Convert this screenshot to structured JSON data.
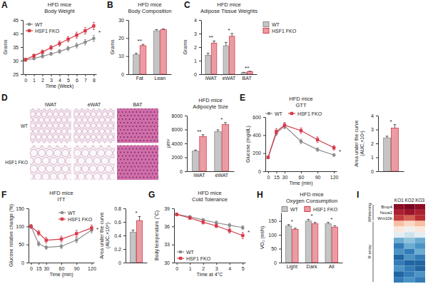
{
  "chart_data": [
    {
      "panel": "A",
      "type": "line",
      "subtitle": "HFD mice",
      "title": "Body Weight",
      "x_label": "Time (Week)",
      "y_label": "Grams",
      "x": [
        0,
        1,
        2,
        3,
        4,
        5,
        6,
        7,
        8
      ],
      "xlim": [
        -0.3,
        8.3
      ],
      "xticks": [
        0,
        1,
        2,
        3,
        4,
        5,
        6,
        7,
        8
      ],
      "ylim": [
        25,
        45
      ],
      "yticks": [
        25,
        30,
        35,
        40,
        45
      ],
      "legend": "top-left",
      "annotation": "*",
      "series": [
        {
          "name": "WT",
          "color": "#8c8c8c",
          "marker": "circle",
          "values": [
            30.2,
            30.8,
            31.6,
            32.5,
            33.4,
            34.5,
            35.6,
            36.8,
            38.2
          ],
          "errors": [
            0.5,
            0.5,
            0.6,
            0.6,
            0.7,
            0.8,
            0.9,
            1.0,
            1.1
          ]
        },
        {
          "name": "HSF1 FKO",
          "color": "#d63a4a",
          "marker": "square",
          "values": [
            30.4,
            31.8,
            33.2,
            34.8,
            36.3,
            37.9,
            39.4,
            41.0,
            42.8
          ],
          "errors": [
            0.5,
            0.6,
            0.7,
            0.8,
            0.9,
            1.0,
            1.1,
            1.2,
            1.3
          ]
        }
      ]
    },
    {
      "panel": "B",
      "type": "bar",
      "subtitle": "HFD mice",
      "title": "Body Composition",
      "y_label": "Grams",
      "categories": [
        "Fat",
        "Lean"
      ],
      "ylim": [
        0,
        30
      ],
      "yticks": [
        0,
        10,
        20,
        30
      ],
      "annotations": [
        "**",
        null
      ],
      "series": [
        {
          "color": "#8c8c8c",
          "values": [
            10.8,
            24.0
          ],
          "errors": [
            0.8,
            0.7
          ]
        },
        {
          "color": "#d63a4a",
          "values": [
            15.8,
            24.6
          ],
          "errors": [
            0.7,
            0.5
          ]
        }
      ]
    },
    {
      "panel": "C",
      "type": "bar",
      "subtitle": "HFD mice",
      "title": "Adipose Tissue Weights",
      "y_label": "Grams",
      "categories": [
        "iWAT",
        "eWAT",
        "BAT"
      ],
      "ylim": [
        0,
        4
      ],
      "yticks": [
        0,
        1,
        2,
        3,
        4
      ],
      "legend": "outside-right",
      "annotations": [
        "**",
        "*",
        "**"
      ],
      "series": [
        {
          "name": "WT",
          "color": "#8c8c8c",
          "values": [
            1.4,
            2.1,
            0.12
          ],
          "errors": [
            0.15,
            0.25,
            0.02
          ]
        },
        {
          "name": "HSF1 FKO",
          "color": "#d63a4a",
          "values": [
            2.3,
            2.8,
            0.2
          ],
          "errors": [
            0.15,
            0.2,
            0.02
          ]
        }
      ]
    },
    {
      "panel": "D",
      "type": "image",
      "columns": [
        "iWAT",
        "eWAT",
        "BAT"
      ],
      "rows": [
        "WT",
        "HSF1 FKO"
      ]
    },
    {
      "type": "bar",
      "subtitle": "HFD mice",
      "title": "Adipocyte Size",
      "y_label": "μm²",
      "categories": [
        "iWAT",
        "eWAT"
      ],
      "ylim": [
        0,
        8000
      ],
      "yticks": [
        0,
        2000,
        4000,
        6000,
        8000
      ],
      "annotations": [
        "**",
        "*"
      ],
      "series": [
        {
          "color": "#8c8c8c",
          "values": [
            2900,
            5700
          ],
          "errors": [
            150,
            250
          ]
        },
        {
          "color": "#d63a4a",
          "values": [
            5000,
            6700
          ],
          "errors": [
            250,
            300
          ]
        }
      ]
    },
    {
      "panel": "E",
      "type": "line",
      "subtitle": "HFD mice",
      "title": "GTT",
      "x_label": "Time (min)",
      "y_label": "Glucose (mg/dL)",
      "x": [
        0,
        15,
        30,
        60,
        90,
        120
      ],
      "xlim": [
        -5,
        125
      ],
      "xticks": [
        0,
        15,
        30,
        60,
        90,
        120
      ],
      "ylim": [
        0,
        600
      ],
      "yticks": [
        0,
        200,
        400,
        600
      ],
      "legend": "top",
      "annotation": "*",
      "series": [
        {
          "name": "WT",
          "color": "#8c8c8c",
          "marker": "circle",
          "values": [
            150,
            420,
            500,
            330,
            240,
            180
          ],
          "errors": [
            10,
            25,
            30,
            25,
            20,
            15
          ]
        },
        {
          "name": "HSF1 FKO",
          "color": "#d63a4a",
          "marker": "square",
          "values": [
            155,
            440,
            510,
            450,
            350,
            260
          ],
          "errors": [
            10,
            30,
            30,
            30,
            30,
            25
          ]
        }
      ]
    },
    {
      "type": "bar",
      "y_label": [
        "Area under the curve",
        "(AUC,×10³)"
      ],
      "categories": [
        null
      ],
      "ylim": [
        0,
        4
      ],
      "yticks": [
        0,
        1,
        2,
        3,
        4
      ],
      "annotations": [
        "*"
      ],
      "series": [
        {
          "color": "#8c8c8c",
          "values": [
            2.4
          ],
          "errors": [
            0.12
          ]
        },
        {
          "color": "#d63a4a",
          "values": [
            3.1
          ],
          "errors": [
            0.25
          ]
        }
      ]
    },
    {
      "panel": "F",
      "type": "line",
      "subtitle": "HFD mice",
      "title": "ITT",
      "x_label": "Time (min)",
      "y_label": "Glucose relative change (%)",
      "x": [
        0,
        15,
        30,
        60,
        90,
        120
      ],
      "xlim": [
        -5,
        125
      ],
      "xticks": [
        0,
        15,
        30,
        60,
        90,
        120
      ],
      "ylim": [
        0,
        150
      ],
      "yticks": [
        0,
        50,
        100,
        150
      ],
      "legend": "top-right",
      "annotation": "*",
      "series": [
        {
          "name": "WT",
          "color": "#8c8c8c",
          "marker": "circle",
          "values": [
            100,
            52,
            42,
            45,
            62,
            90
          ],
          "errors": [
            5,
            6,
            5,
            6,
            7,
            8
          ]
        },
        {
          "name": "HSF1 FKO",
          "color": "#d63a4a",
          "marker": "square",
          "values": [
            100,
            82,
            62,
            65,
            80,
            96
          ],
          "errors": [
            5,
            7,
            8,
            8,
            9,
            8
          ]
        }
      ]
    },
    {
      "type": "bar",
      "y_label": [
        "Area under the curve",
        "(AUC,×10⁴)"
      ],
      "categories": [
        null
      ],
      "ylim": [
        0,
        0.8
      ],
      "yticks": [
        0,
        0.2,
        0.4,
        0.6,
        0.8
      ],
      "annotations": [
        "*"
      ],
      "series": [
        {
          "color": "#8c8c8c",
          "values": [
            0.45
          ],
          "errors": [
            0.03
          ]
        },
        {
          "color": "#d63a4a",
          "values": [
            0.62
          ],
          "errors": [
            0.06
          ]
        }
      ]
    },
    {
      "panel": "G",
      "type": "line",
      "subtitle": "HFD mice",
      "title": "Cold Tolerance",
      "x_label": "Time at 4°C",
      "y_label": "Body temperature (°C)",
      "x": [
        0,
        1,
        2,
        3,
        4,
        5
      ],
      "xlim": [
        -0.2,
        5.2
      ],
      "xticks": [
        0,
        1,
        2,
        3,
        4,
        5
      ],
      "ylim": [
        30,
        39
      ],
      "yticks": [
        30,
        33,
        36,
        39
      ],
      "legend": "bottom-left",
      "annotation": "*",
      "series": [
        {
          "name": "WT",
          "color": "#8c8c8c",
          "marker": "circle",
          "values": [
            38.0,
            37.6,
            37.1,
            36.6,
            36.2,
            35.8
          ],
          "errors": [
            0.2,
            0.2,
            0.2,
            0.3,
            0.3,
            0.3
          ]
        },
        {
          "name": "HSF1 FKO",
          "color": "#d63a4a",
          "marker": "square",
          "values": [
            38.0,
            37.4,
            36.7,
            36.1,
            35.3,
            34.5
          ],
          "errors": [
            0.2,
            0.2,
            0.3,
            0.3,
            0.4,
            0.5
          ]
        }
      ]
    },
    {
      "panel": "H",
      "type": "bar",
      "subtitle": "HFD mice",
      "title": "Oxygen Consumption",
      "y_label": "VO₂ (ml/h)",
      "categories": [
        "Light",
        "Dark",
        "All"
      ],
      "ylim": [
        0,
        180
      ],
      "yticks": [
        0,
        50,
        100,
        150
      ],
      "legend": "top",
      "annotations": [
        "*",
        "*",
        "*"
      ],
      "series": [
        {
          "name": "WT",
          "color": "#8c8c8c",
          "values": [
            132,
            150,
            140
          ],
          "errors": [
            5,
            6,
            5
          ]
        },
        {
          "name": "HSF1 FKO",
          "color": "#d63a4a",
          "values": [
            120,
            140,
            128
          ],
          "errors": [
            4,
            5,
            5
          ]
        }
      ]
    },
    {
      "panel": "I",
      "type": "heatmap",
      "columns": [
        "KO1",
        "KO2",
        "KO3"
      ],
      "rows": [
        "Bmp4",
        "Ncoa2",
        "Wnt10b",
        null,
        null,
        null,
        null,
        null,
        null,
        null,
        null,
        null,
        null,
        null
      ],
      "groups": [
        {
          "label": "Whitening",
          "rows": [
            0,
            2
          ]
        },
        {
          "label": "R array",
          "rows": [
            3,
            13
          ]
        }
      ],
      "zlim": [
        -1,
        1
      ],
      "values": [
        [
          0.9,
          0.95,
          0.9
        ],
        [
          0.8,
          0.85,
          0.8
        ],
        [
          0.7,
          0.6,
          0.75
        ],
        [
          0.3,
          0.2,
          0.3
        ],
        [
          0.1,
          0.0,
          0.1
        ],
        [
          -0.1,
          -0.2,
          -0.1
        ],
        [
          -0.5,
          -0.4,
          -0.5
        ],
        [
          -0.7,
          -0.5,
          -0.6
        ],
        [
          -0.6,
          -0.7,
          -0.5
        ],
        [
          -0.8,
          -0.6,
          -0.7
        ],
        [
          -0.7,
          -0.8,
          -0.8
        ],
        [
          -0.6,
          -0.7,
          -0.8
        ],
        [
          -0.8,
          -0.7,
          -0.6
        ],
        [
          -0.7,
          -0.6,
          -0.7
        ]
      ]
    }
  ]
}
